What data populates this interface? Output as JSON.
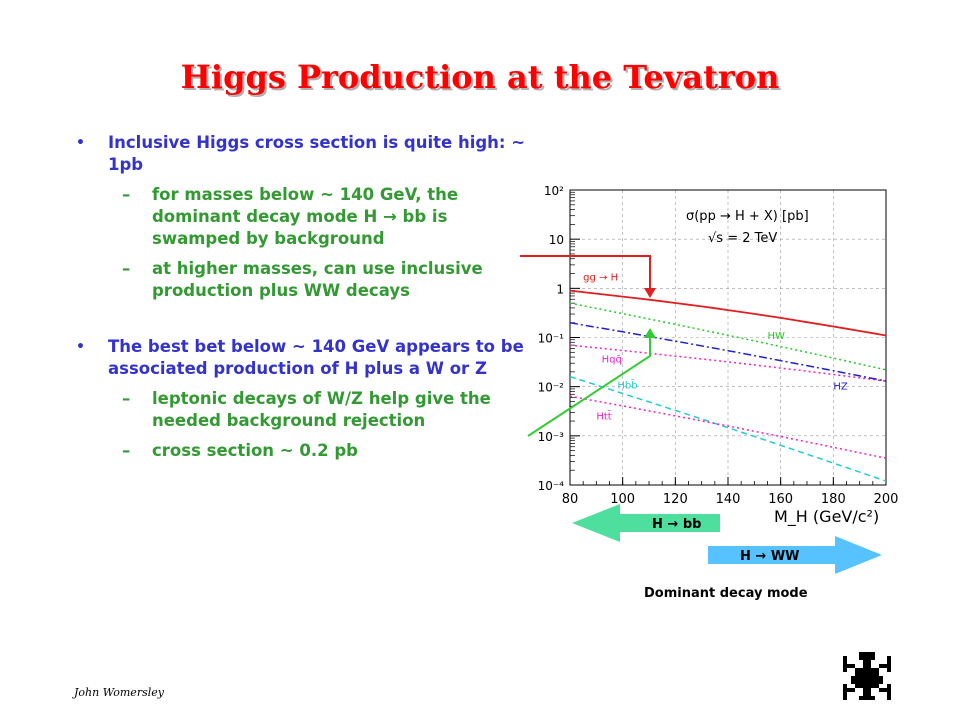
{
  "slide": {
    "title": "Higgs Production at the Tevatron",
    "author": "John Womersley"
  },
  "bullets": [
    {
      "text": "Inclusive Higgs cross section is quite high: ~ 1pb",
      "sub": [
        "for masses below ~ 140 GeV, the dominant decay mode H → bb is swamped by background",
        "at higher masses, can use inclusive production plus WW decays"
      ]
    },
    {
      "text": "The best bet below ~ 140 GeV appears to be associated production of H plus a W or Z",
      "sub": [
        "leptonic decays of W/Z help give the needed background rejection",
        "cross section ~ 0.2 pb"
      ]
    }
  ],
  "chart_data": {
    "type": "line",
    "title": "σ(pp → H + X) [pb]",
    "subtitle": "√s = 2 TeV",
    "xlabel": "M_H (GeV/c²)",
    "xlim": [
      80,
      200
    ],
    "ylim_log10": [
      -4,
      2
    ],
    "x_ticks": [
      "80",
      "100",
      "120",
      "140",
      "160",
      "180",
      "200"
    ],
    "y_ticks": [
      "10²",
      "10",
      "1",
      "10⁻¹",
      "10⁻²",
      "10⁻³",
      "10⁻⁴"
    ],
    "series": [
      {
        "name": "gg → H",
        "color": "#e02020",
        "dash": "",
        "x": [
          80,
          200
        ],
        "y": [
          0.9,
          0.11
        ]
      },
      {
        "name": "HW",
        "color": "#22cc22",
        "dash": "2,3",
        "x": [
          80,
          200
        ],
        "y": [
          0.5,
          0.022
        ]
      },
      {
        "name": "Hqq̄",
        "color": "#ee22cc",
        "dash": "2,3",
        "x": [
          80,
          200
        ],
        "y": [
          0.07,
          0.013
        ]
      },
      {
        "name": "HZ",
        "color": "#2222cc",
        "dash": "8,3,2,3",
        "x": [
          80,
          200
        ],
        "y": [
          0.2,
          0.013
        ]
      },
      {
        "name": "Hbb̄",
        "color": "#22cccc",
        "dash": "6,4",
        "x": [
          80,
          200
        ],
        "y": [
          0.016,
          0.00012
        ]
      },
      {
        "name": "Htt̄",
        "color": "#ee22cc",
        "dash": "2,3",
        "x": [
          80,
          200
        ],
        "y": [
          0.0064,
          0.00035
        ]
      }
    ]
  },
  "arrows": {
    "hbb": "H → bb",
    "hww": "H → WW",
    "caption": "Dominant decay mode"
  },
  "colors": {
    "title": "#ff0000",
    "bullet_main": "#3333cc",
    "bullet_sub": "#339933",
    "arrow_hbb": "#44dd99",
    "arrow_hww": "#44bbff"
  }
}
